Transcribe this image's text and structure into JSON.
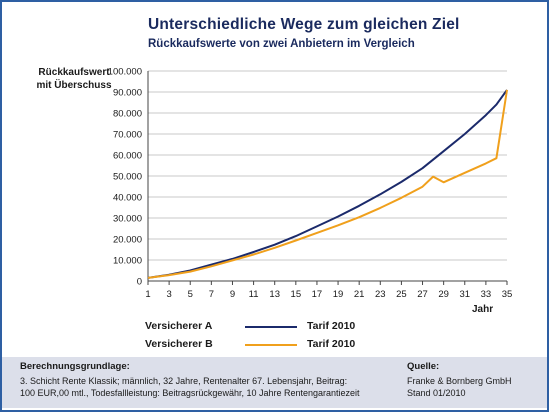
{
  "chart_data": {
    "type": "line",
    "title": "Unterschiedliche Wege zum gleichen Ziel",
    "subtitle": "Rückkaufswerte von zwei Anbietern im Vergleich",
    "ylabel": "Rückkaufswert mit Überschuss",
    "ylabel_lines": [
      "Rückkaufswert",
      "mit Überschuss"
    ],
    "xlabel": "Jahr",
    "xlim": [
      1,
      35
    ],
    "ylim": [
      0,
      100000
    ],
    "x_ticks": [
      1,
      3,
      5,
      7,
      9,
      11,
      13,
      15,
      17,
      19,
      21,
      23,
      25,
      27,
      29,
      31,
      33,
      35
    ],
    "y_ticks": [
      {
        "value": 0,
        "label": "0"
      },
      {
        "value": 10000,
        "label": "10.000"
      },
      {
        "value": 20000,
        "label": "20.000"
      },
      {
        "value": 30000,
        "label": "30.000"
      },
      {
        "value": 40000,
        "label": "40.000"
      },
      {
        "value": 50000,
        "label": "50.000"
      },
      {
        "value": 60000,
        "label": "60.000"
      },
      {
        "value": 70000,
        "label": "70.000"
      },
      {
        "value": 80000,
        "label": "80.000"
      },
      {
        "value": 90000,
        "label": "90.000"
      },
      {
        "value": 100000,
        "label": "100.000"
      }
    ],
    "grid": "horizontal",
    "series": [
      {
        "name": "Versicherer A",
        "tarif": "Tarif 2010",
        "color": "#1b2a6b",
        "x": [
          1,
          3,
          5,
          7,
          9,
          11,
          13,
          15,
          17,
          19,
          21,
          23,
          25,
          27,
          29,
          31,
          33,
          34,
          35
        ],
        "y": [
          1500,
          3000,
          5000,
          7800,
          10500,
          13800,
          17300,
          21400,
          26000,
          30700,
          35800,
          41300,
          47200,
          53700,
          61800,
          70000,
          79000,
          84000,
          91000
        ]
      },
      {
        "name": "Versicherer B",
        "tarif": "Tarif 2010",
        "color": "#f0a01c",
        "x": [
          1,
          3,
          5,
          7,
          9,
          11,
          13,
          15,
          17,
          19,
          21,
          23,
          25,
          27,
          28,
          29,
          31,
          33,
          34,
          35
        ],
        "y": [
          1500,
          2800,
          4500,
          7000,
          9800,
          12600,
          15800,
          19300,
          22900,
          26500,
          30400,
          34800,
          39600,
          44900,
          49700,
          47000,
          51500,
          56000,
          58500,
          91000
        ]
      }
    ]
  },
  "footer": {
    "left_heading": "Berechnungsgrundlage:",
    "left_line1": "3. Schicht Rente Klassik;  männlich, 32 Jahre, Rentenalter 67. Lebensjahr, Beitrag:",
    "left_line2": "100 EUR,00 mtl., Todesfallleistung: Beitragsrückgewähr, 10 Jahre Rentengarantiezeit",
    "right_heading": "Quelle:",
    "right_line1": "Franke & Bornberg GmbH",
    "right_line2": "Stand 01/2010"
  }
}
